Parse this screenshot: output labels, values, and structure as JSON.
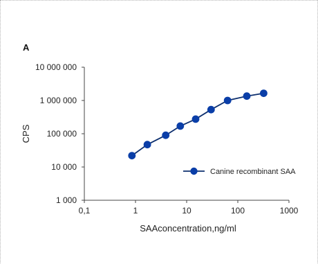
{
  "chart_data": {
    "type": "line",
    "panel_label": "A",
    "xlabel": "SAAconcentration,ng/ml",
    "ylabel": "CPS",
    "x_scale": "log",
    "y_scale": "log",
    "xlim": [
      0.1,
      1000
    ],
    "ylim": [
      1000,
      10000000
    ],
    "x_ticks": [
      {
        "value": 0.1,
        "label": "0,1"
      },
      {
        "value": 1,
        "label": "1"
      },
      {
        "value": 10,
        "label": "10"
      },
      {
        "value": 100,
        "label": "100"
      },
      {
        "value": 1000,
        "label": "1000"
      }
    ],
    "y_ticks": [
      {
        "value": 1000,
        "label": "1 000"
      },
      {
        "value": 10000,
        "label": "10 000"
      },
      {
        "value": 100000,
        "label": "100 000"
      },
      {
        "value": 1000000,
        "label": "1 000 000"
      },
      {
        "value": 10000000,
        "label": "10 000 000"
      }
    ],
    "grid": false,
    "legend_position": "right",
    "series": [
      {
        "name": "Canine recombinant SAA",
        "color": "#0a3ea8",
        "line_color": "#0d2f6e",
        "x": [
          0.85,
          1.7,
          3.9,
          7.5,
          15,
          30,
          63,
          150,
          320
        ],
        "y": [
          22000,
          47000,
          90000,
          170000,
          275000,
          530000,
          1000000,
          1350000,
          1650000
        ]
      }
    ]
  }
}
